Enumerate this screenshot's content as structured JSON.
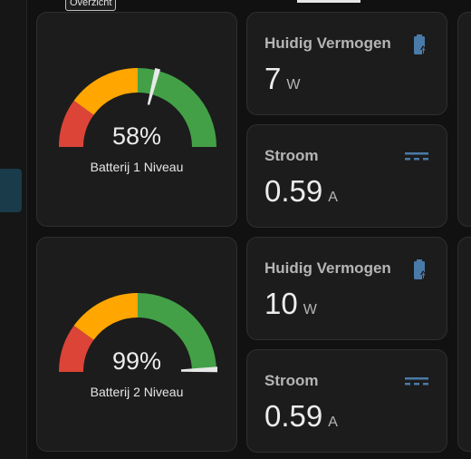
{
  "tooltip": "Overzicht",
  "colors": {
    "red": "#db4437",
    "orange": "#ffa600",
    "green": "#43a047",
    "icon_blue": "#4a7aa8"
  },
  "gauges": [
    {
      "value": 58,
      "value_text": "58%",
      "name": "Batterij 1 Niveau"
    },
    {
      "value": 99,
      "value_text": "99%",
      "name": "Batterij 2 Niveau"
    }
  ],
  "sensors": [
    {
      "title": "Huidig Vermogen",
      "value": "7",
      "unit": "W",
      "icon": "battery-charging-icon"
    },
    {
      "title": "Stroom",
      "value": "0.59",
      "unit": "A",
      "icon": "current-dc-icon"
    },
    {
      "title": "Huidig Vermogen",
      "value": "10",
      "unit": "W",
      "icon": "battery-charging-icon"
    },
    {
      "title": "Stroom",
      "value": "0.59",
      "unit": "A",
      "icon": "current-dc-icon"
    }
  ]
}
